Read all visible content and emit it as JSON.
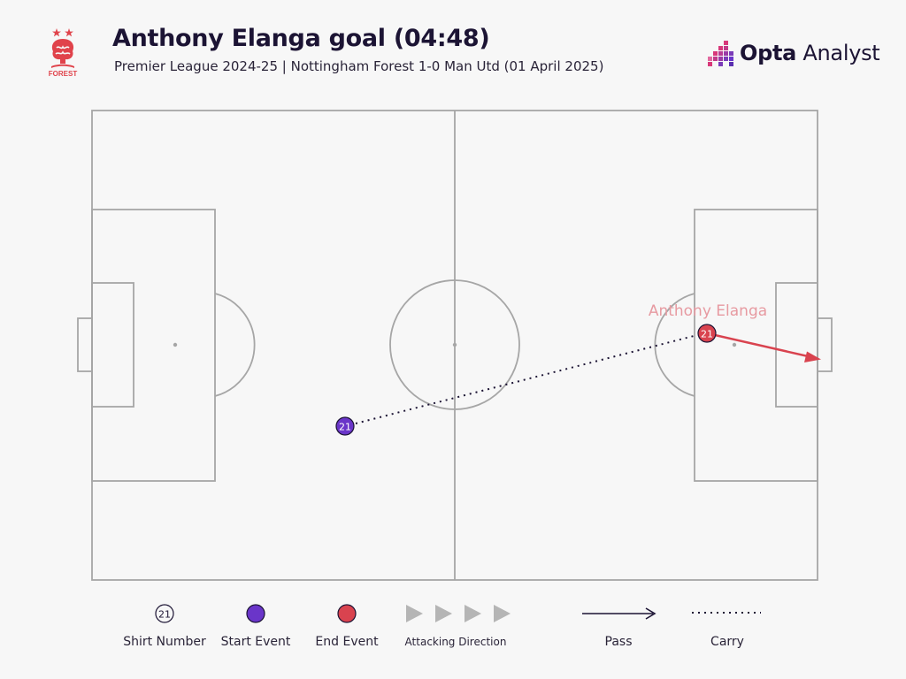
{
  "header": {
    "title": "Anthony Elanga goal (04:48)",
    "subtitle": "Premier League 2024-25 | Nottingham Forest 1-0 Man Utd (01 April 2025)",
    "crest_icon": "nottingham-forest-crest",
    "crest_text": "FOREST",
    "brand_bold": "Opta",
    "brand_light": " Analyst"
  },
  "pitch": {
    "player_name": "Anthony Elanga",
    "start_shirt": "21",
    "end_shirt": "21"
  },
  "legend": {
    "shirt_sample": "21",
    "shirt_number": "Shirt Number",
    "start_event": "Start Event",
    "end_event": "End Event",
    "attacking_direction": "Attacking Direction",
    "pass": "Pass",
    "carry": "Carry"
  },
  "colors": {
    "background": "#f7f7f7",
    "pitch_lines": "#a6a6a6",
    "start_event": "#6a35c9",
    "end_event": "#d9434f",
    "player_label": "#e79aa1",
    "pass_arrow": "#1c1434",
    "crest_red": "#e0434b",
    "brand_pink": "#d8387a",
    "brand_purple": "#7a3bb8"
  }
}
